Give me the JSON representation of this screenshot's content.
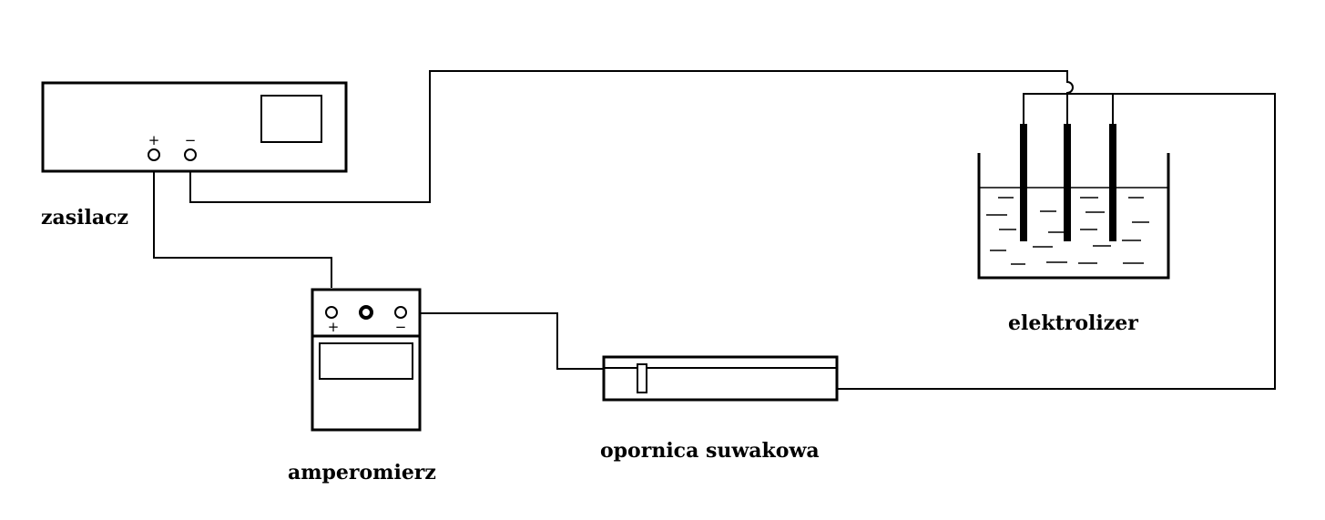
{
  "labels": {
    "power_supply": "zasilacz",
    "ammeter": "amperomierz",
    "rheostat": "opornica suwakowa",
    "electrolyzer": "elektrolizer"
  },
  "terminals": {
    "plus": "+",
    "minus": "−"
  },
  "colors": {
    "line": "#000000",
    "background": "#ffffff"
  }
}
